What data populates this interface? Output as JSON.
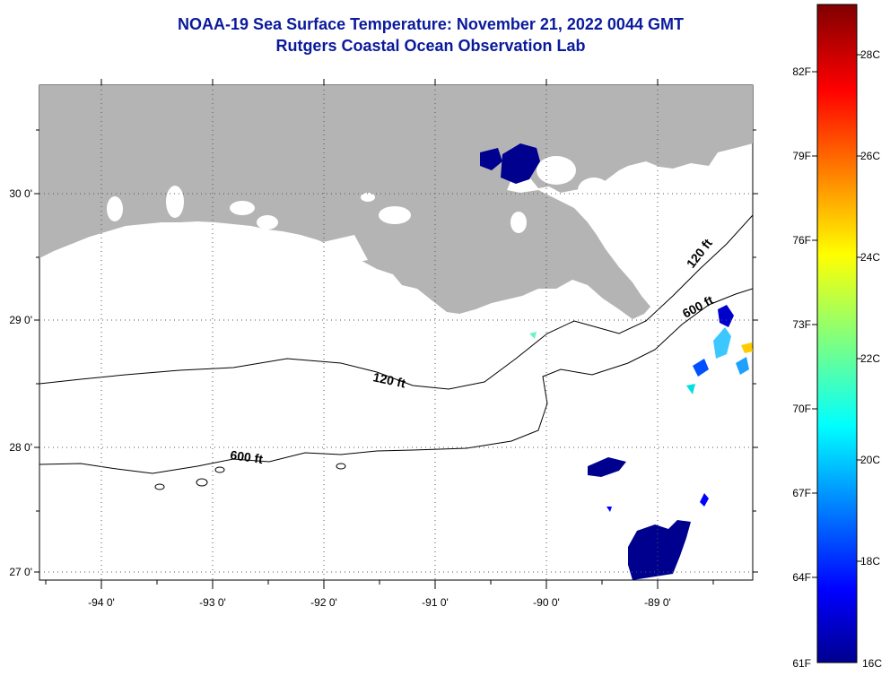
{
  "title": "NOAA-19 Sea Surface Temperature:  November 21, 2022 0044 GMT",
  "subtitle": "Rutgers Coastal Ocean Observation Lab",
  "map": {
    "lat_labels": [
      "30 0'",
      "29 0'",
      "28 0'",
      "27 0'"
    ],
    "lon_labels": [
      "-94 0'",
      "-93 0'",
      "-92 0'",
      "-91 0'",
      "-90 0'",
      "-89 0'"
    ],
    "contour_labels": [
      "120 ft",
      "120 ft",
      "600 ft",
      "600 ft"
    ],
    "land_color": "#b4b4b4",
    "water_color": "#ffffff"
  },
  "colorbar": {
    "fahrenheit_labels": [
      "82F",
      "79F",
      "76F",
      "73F",
      "70F",
      "67F",
      "64F",
      "61F"
    ],
    "celsius_labels": [
      "28C",
      "26C",
      "24C",
      "22C",
      "20C",
      "18C",
      "16C"
    ],
    "min_c": 16,
    "max_c": 29,
    "colormap": "jet"
  }
}
